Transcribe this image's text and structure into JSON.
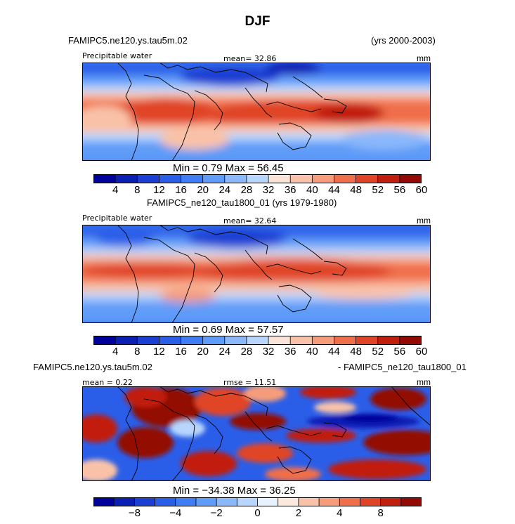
{
  "figure": {
    "title": "DJF"
  },
  "panel1": {
    "case": "FAMIPC5.ne120.ys.tau5m.02",
    "years": "(yrs 2000-2003)",
    "variable": "Precipitable water",
    "mean_text": "mean=  32.86",
    "units": "mm",
    "stats": "Min =   0.79 Max =  56.45"
  },
  "panel2": {
    "case_years": "FAMIPC5_ne120_tau1800_01 (yrs 1979-1980)",
    "variable": "Precipitable water",
    "mean_text": "mean=  32.64",
    "units": "mm",
    "stats": "Min =   0.69 Max =  57.57"
  },
  "panel3": {
    "case_left": "FAMIPC5.ne120.ys.tau5m.02",
    "case_right": "- FAMIPC5_ne120_tau1800_01",
    "mean_text": "mean =   0.22",
    "rmse_text": "rmse =  11.51",
    "units": "mm",
    "stats": "Min = −34.38 Max =  36.25"
  },
  "colorbar_main": {
    "colors": [
      "#00009c",
      "#0a1fb4",
      "#1a3fd2",
      "#2b5ee8",
      "#3e7df4",
      "#5f9bf8",
      "#8ab8fb",
      "#b8d6fd",
      "#fbe3d8",
      "#f9c2a8",
      "#f69c7a",
      "#f06e49",
      "#e04426",
      "#c11f0e",
      "#930a04"
    ],
    "tick_labels": [
      "4",
      "8",
      "12",
      "16",
      "20",
      "24",
      "28",
      "32",
      "36",
      "40",
      "44",
      "48",
      "52",
      "56",
      "60"
    ]
  },
  "colorbar_diff": {
    "colors": [
      "#00009c",
      "#0a1fb4",
      "#1a3fd2",
      "#2b5ee8",
      "#3e7df4",
      "#5f9bf8",
      "#8ab8fb",
      "#b8d6fd",
      "#e8f1fe",
      "#fde8de",
      "#f9c2a8",
      "#f69c7a",
      "#f06e49",
      "#e04426",
      "#c11f0e",
      "#930a04"
    ],
    "tick_labels": [
      "−8",
      "−4",
      "−2",
      "0",
      "2",
      "4",
      "8"
    ]
  }
}
